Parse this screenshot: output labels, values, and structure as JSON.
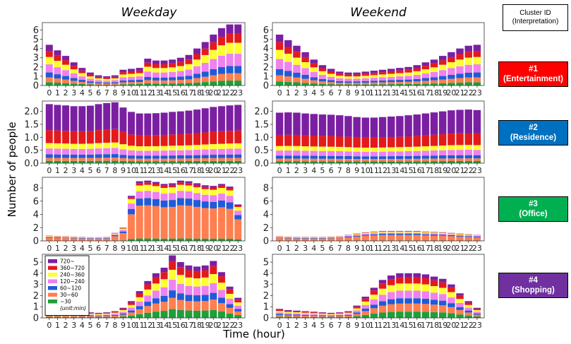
{
  "figure": {
    "column_titles": [
      "Weekday",
      "Weekend"
    ],
    "xlabel": "Time (hour)",
    "ylabel": "Number of people"
  },
  "cluster_header": {
    "line1": "Cluster ID",
    "line2": "(Interpretation)"
  },
  "clusters": [
    {
      "id": "#1",
      "interpretation": "(Entertainment)",
      "color": "#ff0000"
    },
    {
      "id": "#2",
      "interpretation": "(Residence)",
      "color": "#0070c0"
    },
    {
      "id": "#3",
      "interpretation": "(Office)",
      "color": "#00b050"
    },
    {
      "id": "#4",
      "interpretation": "(Shopping)",
      "color": "#7030a0"
    }
  ],
  "chart_data": {
    "type": "bar",
    "stacked": true,
    "grid": false,
    "hours": [
      0,
      1,
      2,
      3,
      4,
      5,
      6,
      7,
      8,
      9,
      10,
      11,
      12,
      13,
      14,
      15,
      16,
      17,
      18,
      19,
      20,
      21,
      22,
      23
    ],
    "legend": {
      "placement": "inside bottom-left panel (#4 Weekday), top-left",
      "note": "(unit:min)",
      "entries": [
        {
          "label": "720~",
          "color": "#7b1fa2"
        },
        {
          "label": "360~720",
          "color": "#e31a1c"
        },
        {
          "label": "240~360",
          "color": "#ffff33"
        },
        {
          "label": "120~240",
          "color": "#ee82ee"
        },
        {
          "label": "60~120",
          "color": "#1f5bd6"
        },
        {
          "label": "30~60",
          "color": "#ff7f50"
        },
        {
          "label": "~30",
          "color": "#1f9e3a"
        }
      ]
    },
    "stack_order_bottom_to_top": [
      "~30",
      "30~60",
      "60~120",
      "120~240",
      "240~360",
      "360~720",
      "720~"
    ],
    "panels": [
      {
        "cluster": "#1",
        "column": "Weekday",
        "ylim": [
          0,
          6.8
        ],
        "yticks": [
          0,
          1,
          2,
          3,
          4,
          5,
          6
        ],
        "totals": [
          4.4,
          3.8,
          3.2,
          2.5,
          1.9,
          1.4,
          1.1,
          1.0,
          1.1,
          1.7,
          1.8,
          1.9,
          2.9,
          2.7,
          2.7,
          2.8,
          3.0,
          3.3,
          4.0,
          4.7,
          5.5,
          6.2,
          6.6,
          6.6
        ]
      },
      {
        "cluster": "#1",
        "column": "Weekend",
        "ylim": [
          0,
          6.8
        ],
        "yticks": [
          0,
          1,
          2,
          3,
          4,
          5,
          6
        ],
        "totals": [
          5.5,
          4.9,
          4.3,
          3.6,
          2.8,
          2.2,
          1.8,
          1.5,
          1.4,
          1.4,
          1.5,
          1.6,
          1.7,
          1.8,
          1.9,
          2.0,
          2.2,
          2.5,
          2.8,
          3.2,
          3.6,
          4.0,
          4.3,
          4.4
        ]
      },
      {
        "cluster": "#2",
        "column": "Weekday",
        "ylim": [
          0,
          2.4
        ],
        "yticks": [
          0,
          0.5,
          1.0,
          1.5,
          2.0
        ],
        "totals": [
          2.28,
          2.25,
          2.23,
          2.2,
          2.2,
          2.22,
          2.28,
          2.32,
          2.35,
          2.15,
          1.98,
          1.92,
          1.92,
          1.93,
          1.95,
          1.98,
          2.0,
          2.03,
          2.07,
          2.12,
          2.17,
          2.2,
          2.23,
          2.25
        ]
      },
      {
        "cluster": "#2",
        "column": "Weekend",
        "ylim": [
          0,
          2.4
        ],
        "yticks": [
          0,
          0.5,
          1.0,
          1.5,
          2.0
        ],
        "totals": [
          1.95,
          1.96,
          1.95,
          1.92,
          1.9,
          1.88,
          1.87,
          1.85,
          1.82,
          1.78,
          1.76,
          1.76,
          1.78,
          1.8,
          1.82,
          1.85,
          1.88,
          1.92,
          1.96,
          2.0,
          2.04,
          2.06,
          2.07,
          2.05
        ]
      },
      {
        "cluster": "#3",
        "column": "Weekday",
        "ylim": [
          0,
          9.6
        ],
        "yticks": [
          0,
          2,
          4,
          6,
          8
        ],
        "totals": [
          0.8,
          0.75,
          0.7,
          0.65,
          0.6,
          0.55,
          0.55,
          0.6,
          1.2,
          2.0,
          6.8,
          9.0,
          9.1,
          8.9,
          8.6,
          8.7,
          9.1,
          9.0,
          8.7,
          8.4,
          8.3,
          8.6,
          8.2,
          5.5
        ]
      },
      {
        "cluster": "#3",
        "column": "Weekend",
        "ylim": [
          0,
          9.6
        ],
        "yticks": [
          0,
          2,
          4,
          6,
          8
        ],
        "totals": [
          0.7,
          0.65,
          0.6,
          0.6,
          0.6,
          0.6,
          0.65,
          0.7,
          0.9,
          1.1,
          1.3,
          1.4,
          1.5,
          1.5,
          1.5,
          1.5,
          1.5,
          1.4,
          1.35,
          1.3,
          1.2,
          1.1,
          1.0,
          0.9
        ]
      },
      {
        "cluster": "#4",
        "column": "Weekday",
        "ylim": [
          0,
          5.7
        ],
        "yticks": [
          0,
          1,
          2,
          3,
          4,
          5
        ],
        "totals": [
          0.7,
          0.65,
          0.6,
          0.55,
          0.5,
          0.5,
          0.45,
          0.5,
          0.6,
          0.9,
          1.5,
          2.4,
          3.3,
          4.0,
          4.5,
          5.6,
          5.0,
          4.7,
          4.6,
          4.7,
          5.1,
          4.1,
          2.8,
          1.8
        ]
      },
      {
        "cluster": "#4",
        "column": "Weekend",
        "ylim": [
          0,
          5.7
        ],
        "yticks": [
          0,
          1,
          2,
          3,
          4,
          5
        ],
        "totals": [
          0.8,
          0.7,
          0.65,
          0.6,
          0.55,
          0.5,
          0.45,
          0.5,
          0.6,
          1.1,
          1.9,
          2.7,
          3.4,
          3.8,
          4.0,
          4.0,
          4.0,
          3.9,
          3.7,
          3.5,
          3.0,
          2.2,
          1.5,
          0.9
        ]
      }
    ],
    "category_shares_bottom_to_top": {
      "#1": [
        0.08,
        0.12,
        0.12,
        0.2,
        0.18,
        0.15,
        0.15
      ],
      "#2": [
        0.04,
        0.05,
        0.06,
        0.1,
        0.09,
        0.22,
        0.44
      ],
      "#3": [
        0.04,
        0.55,
        0.12,
        0.12,
        0.1,
        0.04,
        0.03
      ],
      "#4": [
        0.14,
        0.18,
        0.12,
        0.17,
        0.16,
        0.14,
        0.09
      ]
    }
  }
}
